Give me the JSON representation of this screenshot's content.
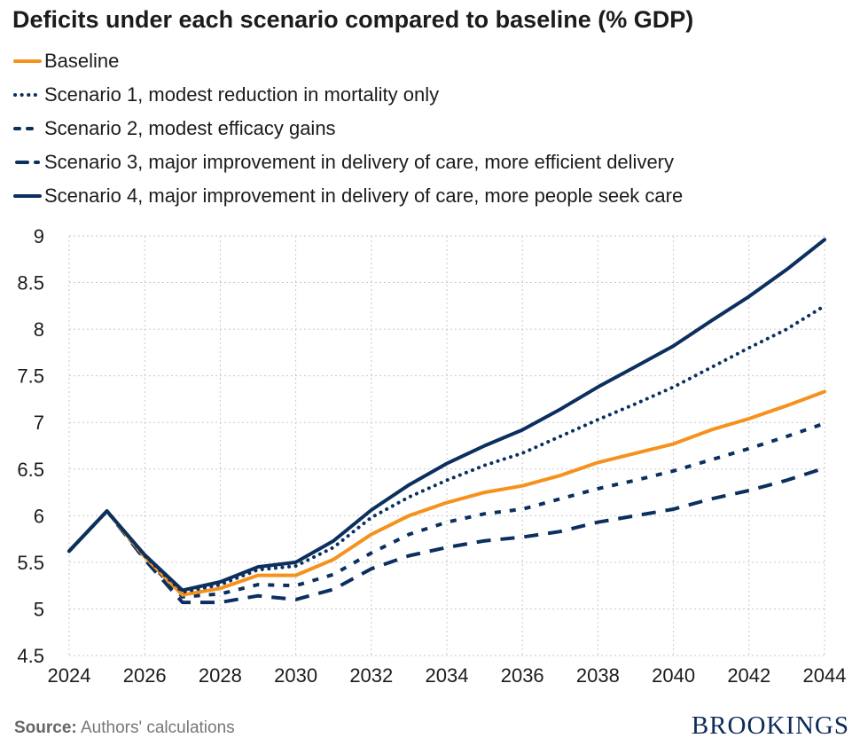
{
  "title": "Deficits under each scenario compared to baseline (% GDP)",
  "source_label": "Source:",
  "source_text": "Authors' calculations",
  "brand": "BROOKINGS",
  "colors": {
    "baseline": "#f5921e",
    "navy": "#0b2f5e",
    "grid": "#c9c9c9",
    "text": "#1c1c1c"
  },
  "chart_data": {
    "type": "line",
    "title": "Deficits under each scenario compared to baseline (% GDP)",
    "xlabel": "",
    "ylabel": "",
    "xlim": [
      2024,
      2044
    ],
    "ylim": [
      4.5,
      9
    ],
    "x_ticks": [
      2024,
      2026,
      2028,
      2030,
      2032,
      2034,
      2036,
      2038,
      2040,
      2042,
      2044
    ],
    "y_ticks": [
      4.5,
      5,
      5.5,
      6,
      6.5,
      7,
      7.5,
      8,
      8.5,
      9
    ],
    "y_tick_labels": [
      "4.5",
      "5",
      "5.5",
      "6",
      "6.5",
      "7",
      "7.5",
      "8",
      "8.5",
      "9"
    ],
    "legend_position": "top-left",
    "x": [
      2024,
      2025,
      2026,
      2027,
      2028,
      2029,
      2030,
      2031,
      2032,
      2033,
      2034,
      2035,
      2036,
      2037,
      2038,
      2039,
      2040,
      2041,
      2042,
      2043,
      2044
    ],
    "series": [
      {
        "name": "Baseline",
        "style": "solid",
        "color": "#f5921e",
        "values": [
          5.62,
          6.05,
          5.56,
          5.15,
          5.22,
          5.36,
          5.36,
          5.53,
          5.8,
          6.0,
          6.14,
          6.25,
          6.32,
          6.43,
          6.57,
          6.67,
          6.77,
          6.92,
          7.04,
          7.18,
          7.33
        ]
      },
      {
        "name": "Scenario 1, modest reduction in mortality only",
        "style": "dotted",
        "color": "#0b2f5e",
        "values": [
          5.62,
          6.05,
          5.57,
          5.18,
          5.26,
          5.42,
          5.46,
          5.66,
          5.98,
          6.2,
          6.38,
          6.54,
          6.67,
          6.85,
          7.03,
          7.2,
          7.38,
          7.59,
          7.8,
          8.0,
          8.25
        ]
      },
      {
        "name": "Scenario 2, modest efficacy gains",
        "style": "short-dash",
        "color": "#0b2f5e",
        "values": [
          5.62,
          6.05,
          5.55,
          5.13,
          5.16,
          5.26,
          5.25,
          5.37,
          5.6,
          5.8,
          5.93,
          6.02,
          6.07,
          6.18,
          6.29,
          6.38,
          6.48,
          6.6,
          6.72,
          6.85,
          6.99
        ]
      },
      {
        "name": "Scenario 3, major improvement in delivery of care, more efficient delivery",
        "style": "long-dash",
        "color": "#0b2f5e",
        "values": [
          5.62,
          6.05,
          5.53,
          5.07,
          5.07,
          5.14,
          5.1,
          5.21,
          5.43,
          5.57,
          5.66,
          5.73,
          5.77,
          5.83,
          5.93,
          6.0,
          6.07,
          6.18,
          6.27,
          6.38,
          6.51
        ]
      },
      {
        "name": "Scenario 4, major improvement in delivery of care, more people seek care",
        "style": "solid",
        "color": "#0b2f5e",
        "values": [
          5.62,
          6.05,
          5.58,
          5.2,
          5.29,
          5.45,
          5.5,
          5.73,
          6.06,
          6.33,
          6.56,
          6.75,
          6.92,
          7.14,
          7.38,
          7.6,
          7.82,
          8.09,
          8.35,
          8.64,
          8.96
        ]
      }
    ]
  }
}
